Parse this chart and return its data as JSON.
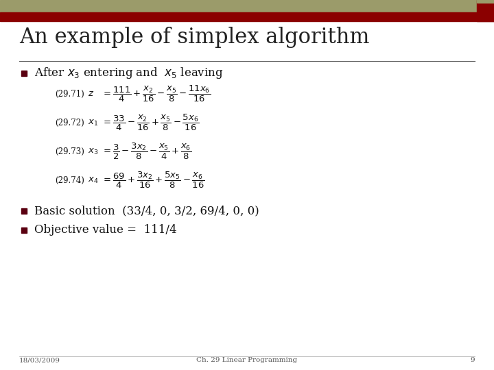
{
  "title": "An example of simplex algorithm",
  "olive_color": "#9B9B6A",
  "darkred_color": "#8B0000",
  "bg_color": "#FFFFFF",
  "bullet_color": "#5A0010",
  "text_color": "#111111",
  "footer_date": "18/03/2009",
  "footer_center": "Ch. 29 Linear Programming",
  "footer_page": "9",
  "eq_labels": [
    "(29.71)",
    "(29.72)",
    "(29.73)",
    "(29.74)"
  ],
  "eq_lhs": [
    "z",
    "x_1",
    "x_3",
    "x_4"
  ],
  "eq_rhs": [
    "= \\dfrac{111}{4} + \\dfrac{x_2}{16} - \\dfrac{x_5}{8} - \\dfrac{11x_6}{16}",
    "= \\dfrac{33}{4} - \\dfrac{x_2}{16} + \\dfrac{x_5}{8} - \\dfrac{5x_6}{16}",
    "= \\dfrac{3}{2} - \\dfrac{3x_2}{8} - \\dfrac{x_5}{4} + \\dfrac{x_6}{8}",
    "= \\dfrac{69}{4} + \\dfrac{3x_2}{16} + \\dfrac{5x_5}{8} - \\dfrac{x_6}{16}"
  ],
  "bullet2": "Basic solution  (33/4, 0, 3/2, 69/4, 0, 0)",
  "bullet3": "Objective value =  111/4"
}
